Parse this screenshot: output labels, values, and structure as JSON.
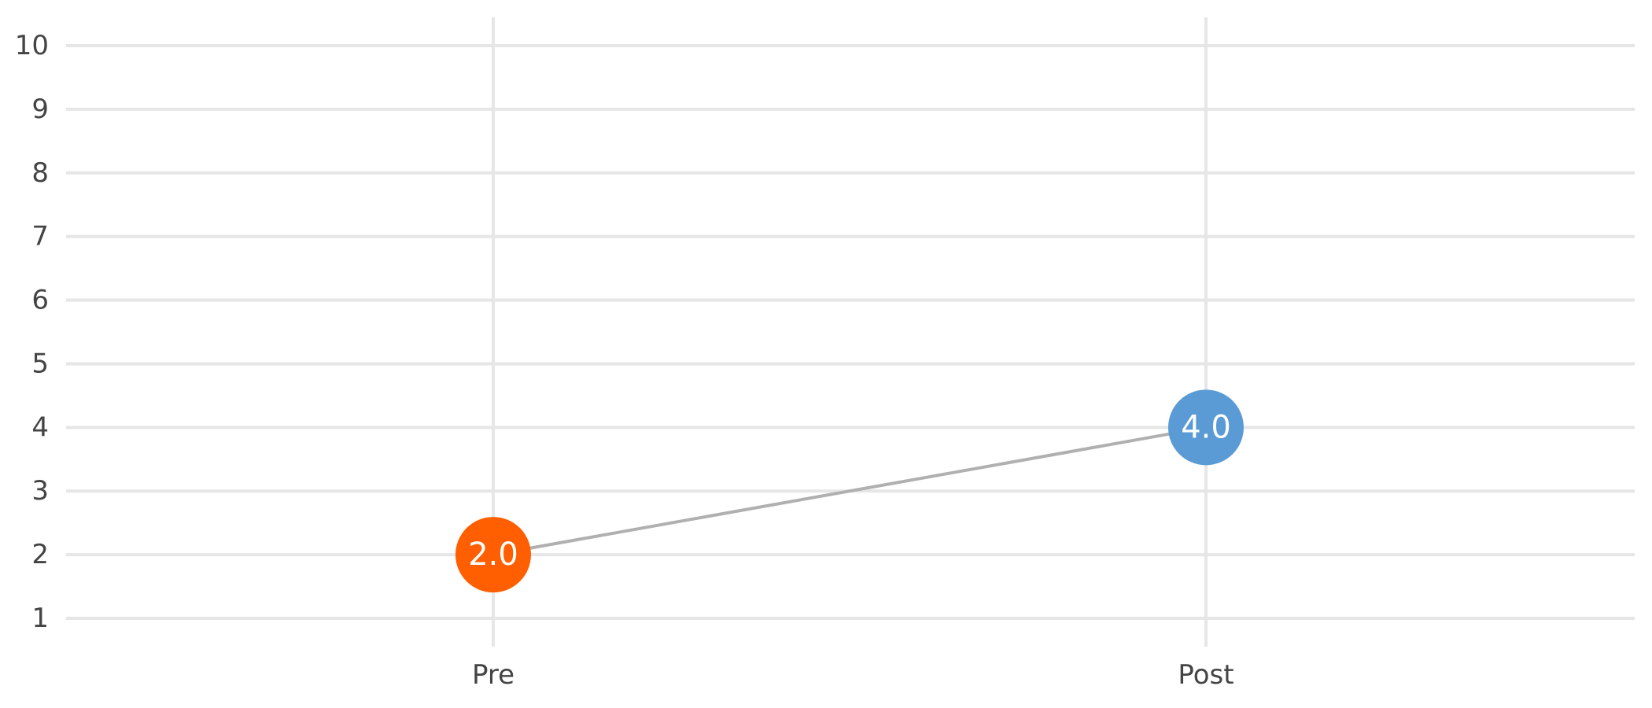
{
  "chart_data": {
    "type": "line",
    "categories": [
      "Pre",
      "Post"
    ],
    "values": [
      2.0,
      4.0
    ],
    "value_labels": [
      "2.0",
      "4.0"
    ],
    "point_colors": [
      "#ff5f00",
      "#5b9bd5"
    ],
    "connector_color": "#b0b0b0",
    "grid_color": "#e6e6e6",
    "ylim": [
      1,
      10
    ],
    "yticks": [
      "1",
      "2",
      "3",
      "4",
      "5",
      "6",
      "7",
      "8",
      "9",
      "10"
    ],
    "grid": true,
    "title": "",
    "xlabel": "",
    "ylabel": ""
  }
}
